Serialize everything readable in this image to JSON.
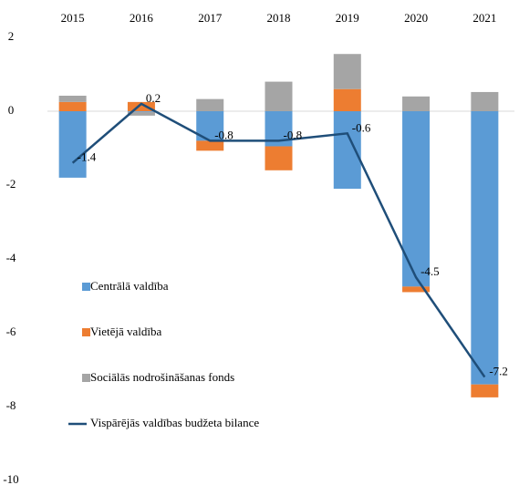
{
  "chart_data": {
    "type": "bar",
    "categories": [
      "2015",
      "2016",
      "2017",
      "2018",
      "2019",
      "2020",
      "2021"
    ],
    "series": [
      {
        "name": "Centrālā valdība",
        "color": "#5b9bd5",
        "values": [
          -1.8,
          -0.02,
          -0.8,
          -0.95,
          -2.1,
          -4.75,
          -7.4
        ]
      },
      {
        "name": "Vietējā valdība",
        "color": "#ed7d31",
        "values": [
          0.25,
          0.25,
          -0.27,
          -0.65,
          0.6,
          -0.15,
          -0.35
        ]
      },
      {
        "name": "Sociālās nodrošināšanas fonds",
        "color": "#a5a5a5",
        "values": [
          0.17,
          -0.1,
          0.33,
          0.8,
          0.95,
          0.4,
          0.52
        ]
      },
      {
        "name": "Vispārējās valdības budžeta bilance",
        "color": "#1f4e79",
        "type": "line",
        "values": [
          -1.4,
          0.2,
          -0.8,
          -0.8,
          -0.6,
          -4.5,
          -7.2
        ]
      }
    ],
    "ylim": [
      -10,
      2
    ],
    "yticks": [
      2,
      0,
      -2,
      -4,
      -6,
      -8,
      -10
    ],
    "stacked": true,
    "legend": "left"
  }
}
